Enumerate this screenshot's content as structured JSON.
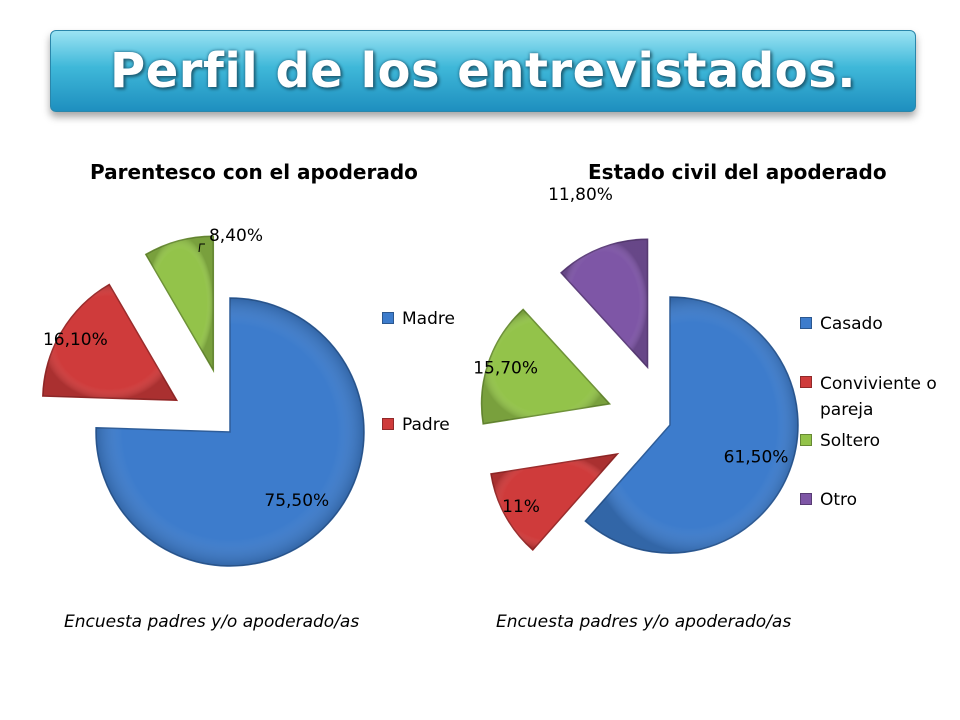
{
  "title": "Perfil de los entrevistados.",
  "chart_data": [
    {
      "type": "pie",
      "title": "Parentesco con el apoderado",
      "source": "Encuesta padres y/o apoderado/as",
      "legend": {
        "position": "right",
        "entries": [
          "Madre",
          "Padre"
        ]
      },
      "slices": [
        {
          "label": "Madre",
          "value": 75.5,
          "display": "75,50%",
          "color": "#3d7ccc"
        },
        {
          "label": "Padre",
          "value": 16.1,
          "display": "16,10%",
          "color": "#cf3b3b"
        },
        {
          "label": "",
          "value": 8.4,
          "display": "8,40%",
          "color": "#93c34a"
        }
      ]
    },
    {
      "type": "pie",
      "title": "Estado civil del apoderado",
      "source": "Encuesta padres y/o apoderado/as",
      "legend": {
        "position": "right",
        "entries": [
          "Casado",
          "Conviviente o pareja",
          "Soltero",
          "Otro"
        ]
      },
      "slices": [
        {
          "label": "Casado",
          "value": 61.5,
          "display": "61,50%",
          "color": "#3d7ccc"
        },
        {
          "label": "Conviviente o pareja",
          "value": 11,
          "display": "11%",
          "color": "#cf3b3b"
        },
        {
          "label": "Soltero",
          "value": 15.7,
          "display": "15,70%",
          "color": "#93c34a"
        },
        {
          "label": "Otro",
          "value": 11.8,
          "display": "11,80%",
          "color": "#7e56a6"
        }
      ]
    }
  ]
}
